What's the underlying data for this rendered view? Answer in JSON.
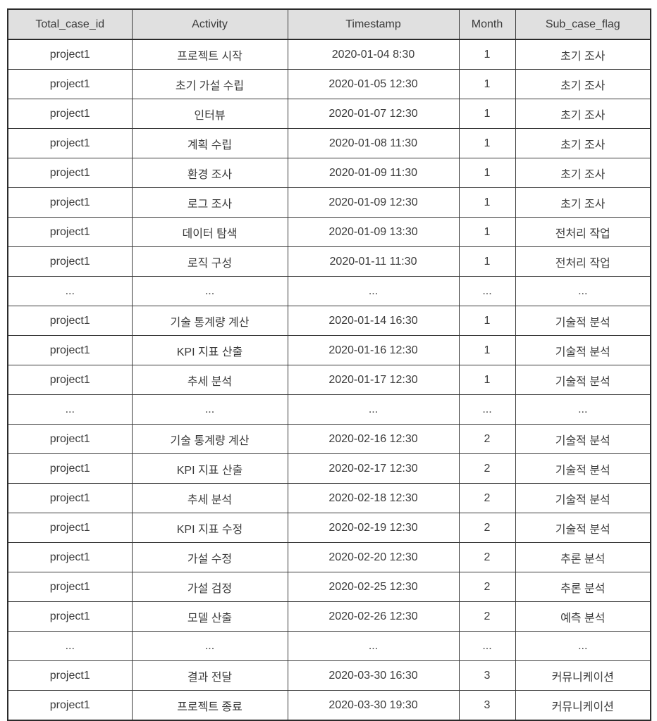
{
  "accent_colors": {
    "header_background": "#e0e0e0",
    "border": "#2b2b2b",
    "text": "#3b3b3b"
  },
  "chart_data": {
    "type": "table",
    "title": "",
    "columns": [
      "Total_case_id",
      "Activity",
      "Timestamp",
      "Month",
      "Sub_case_flag"
    ],
    "rows": [
      [
        "project1",
        "프로젝트 시작",
        "2020-01-04 8:30",
        "1",
        "초기 조사"
      ],
      [
        "project1",
        "초기 가설 수립",
        "2020-01-05 12:30",
        "1",
        "초기 조사"
      ],
      [
        "project1",
        "인터뷰",
        "2020-01-07 12:30",
        "1",
        "초기 조사"
      ],
      [
        "project1",
        "계획 수립",
        "2020-01-08 11:30",
        "1",
        "초기 조사"
      ],
      [
        "project1",
        "환경 조사",
        "2020-01-09 11:30",
        "1",
        "초기 조사"
      ],
      [
        "project1",
        "로그 조사",
        "2020-01-09 12:30",
        "1",
        "초기 조사"
      ],
      [
        "project1",
        "데이터 탐색",
        "2020-01-09 13:30",
        "1",
        "전처리 작업"
      ],
      [
        "project1",
        "로직 구성",
        "2020-01-11 11:30",
        "1",
        "전처리 작업"
      ],
      [
        "...",
        "...",
        "...",
        "...",
        "..."
      ],
      [
        "project1",
        "기술 통계량 계산",
        "2020-01-14 16:30",
        "1",
        "기술적 분석"
      ],
      [
        "project1",
        "KPI 지표 산출",
        "2020-01-16 12:30",
        "1",
        "기술적 분석"
      ],
      [
        "project1",
        "추세 분석",
        "2020-01-17 12:30",
        "1",
        "기술적 분석"
      ],
      [
        "...",
        "...",
        "...",
        "...",
        "..."
      ],
      [
        "project1",
        "기술 통계량 계산",
        "2020-02-16 12:30",
        "2",
        "기술적 분석"
      ],
      [
        "project1",
        "KPI 지표 산출",
        "2020-02-17 12:30",
        "2",
        "기술적 분석"
      ],
      [
        "project1",
        "추세 분석",
        "2020-02-18 12:30",
        "2",
        "기술적 분석"
      ],
      [
        "project1",
        "KPI 지표 수정",
        "2020-02-19 12:30",
        "2",
        "기술적 분석"
      ],
      [
        "project1",
        "가설 수정",
        "2020-02-20 12:30",
        "2",
        "추론 분석"
      ],
      [
        "project1",
        "가설 검정",
        "2020-02-25 12:30",
        "2",
        "추론 분석"
      ],
      [
        "project1",
        "모델 산출",
        "2020-02-26 12:30",
        "2",
        "예측 분석"
      ],
      [
        "...",
        "...",
        "...",
        "...",
        "..."
      ],
      [
        "project1",
        "결과 전달",
        "2020-03-30 16:30",
        "3",
        "커뮤니케이션"
      ],
      [
        "project1",
        "프로젝트 종료",
        "2020-03-30 19:30",
        "3",
        "커뮤니케이션"
      ]
    ]
  }
}
